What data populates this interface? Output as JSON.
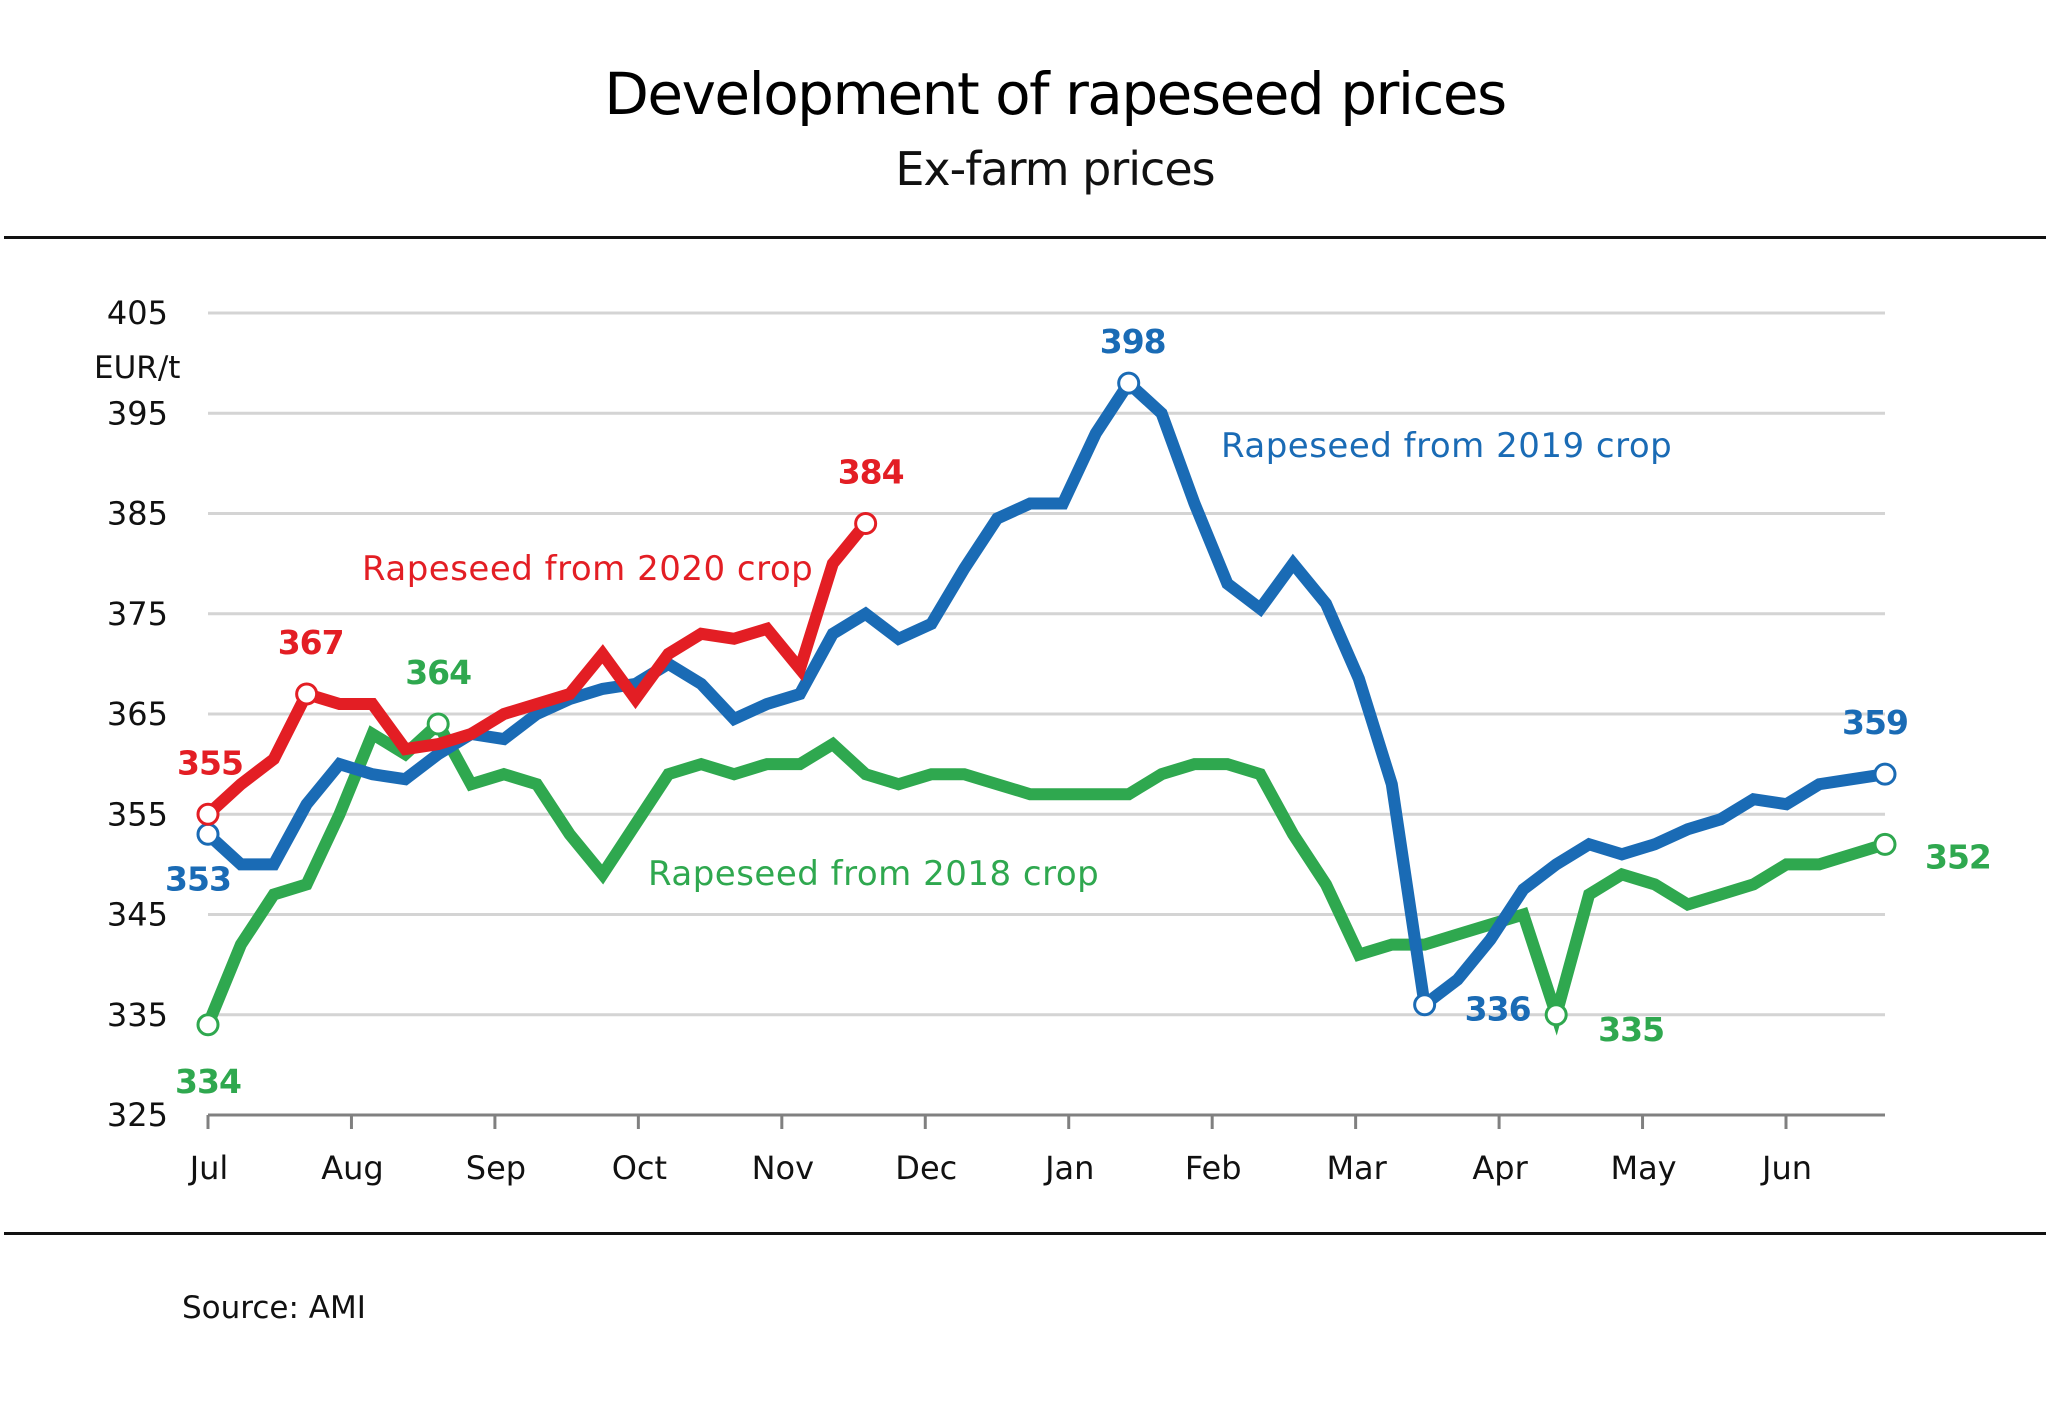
{
  "header": {
    "title": "Development of rapeseed prices",
    "subtitle": "Ex-farm prices"
  },
  "footer": {
    "source": "Source: AMI"
  },
  "chart_data": {
    "type": "line",
    "title": "Development of rapeseed prices",
    "subtitle": "Ex-farm prices",
    "ylabel": "EUR/t",
    "xlabel": "",
    "ylim": [
      325,
      405
    ],
    "yticks": [
      325,
      335,
      345,
      355,
      365,
      375,
      385,
      395,
      405
    ],
    "xticks": [
      "Jul",
      "Aug",
      "Sep",
      "Oct",
      "Nov",
      "Dec",
      "Jan",
      "Feb",
      "Mar",
      "Apr",
      "May",
      "Jun"
    ],
    "x_unit": "weeks from start of July (52 weekly observations span Jul–end Jun)",
    "grid": true,
    "legend": "inline labels",
    "series": [
      {
        "name": "Rapeseed from 2018 crop",
        "color": "#2fa84f",
        "label_position": "middle",
        "values": [
          334,
          342,
          347,
          348,
          355,
          363,
          361,
          364,
          358,
          359,
          358,
          353,
          349,
          354,
          359,
          360,
          359,
          360,
          360,
          362,
          359,
          358,
          359,
          359,
          358,
          357,
          357,
          357,
          357,
          359,
          360,
          360,
          359,
          353,
          348,
          341,
          342,
          342,
          343,
          344,
          345,
          335,
          347,
          349,
          348,
          346,
          347,
          348,
          350,
          350,
          351,
          352
        ],
        "annotations": [
          {
            "index": 0,
            "label": "334"
          },
          {
            "index": 7,
            "label": "364"
          },
          {
            "index": 41,
            "label": "335"
          },
          {
            "index": 51,
            "label": "352"
          }
        ]
      },
      {
        "name": "Rapeseed from 2019 crop",
        "color": "#1a6bb5",
        "label_position": "upper-right",
        "values": [
          353,
          350,
          350,
          356,
          360,
          359,
          358.5,
          361,
          363,
          362.5,
          365,
          366.5,
          367.5,
          368,
          370,
          368,
          364.5,
          366,
          367,
          373,
          375,
          372.5,
          374,
          379.5,
          384.5,
          386,
          386,
          393,
          398,
          395,
          386,
          378,
          375.5,
          380,
          376,
          368.5,
          358,
          336,
          338.5,
          342.5,
          347.5,
          350,
          352,
          351,
          352,
          353.5,
          354.5,
          356.5,
          356,
          358,
          358.5,
          359
        ],
        "annotations": [
          {
            "index": 0,
            "label": "353"
          },
          {
            "index": 28,
            "label": "398"
          },
          {
            "index": 37,
            "label": "336"
          },
          {
            "index": 51,
            "label": "359"
          }
        ]
      },
      {
        "name": "Rapeseed from 2020 crop",
        "color": "#e31e24",
        "label_position": "upper-left",
        "values": [
          355,
          358,
          360.5,
          367,
          366,
          366,
          361.5,
          362,
          363,
          365,
          366,
          367,
          371,
          366.5,
          371,
          373,
          372.5,
          373.5,
          369.5,
          380,
          384
        ],
        "annotations": [
          {
            "index": 0,
            "label": "355"
          },
          {
            "index": 3,
            "label": "367"
          },
          {
            "index": 20,
            "label": "384"
          }
        ]
      }
    ]
  }
}
